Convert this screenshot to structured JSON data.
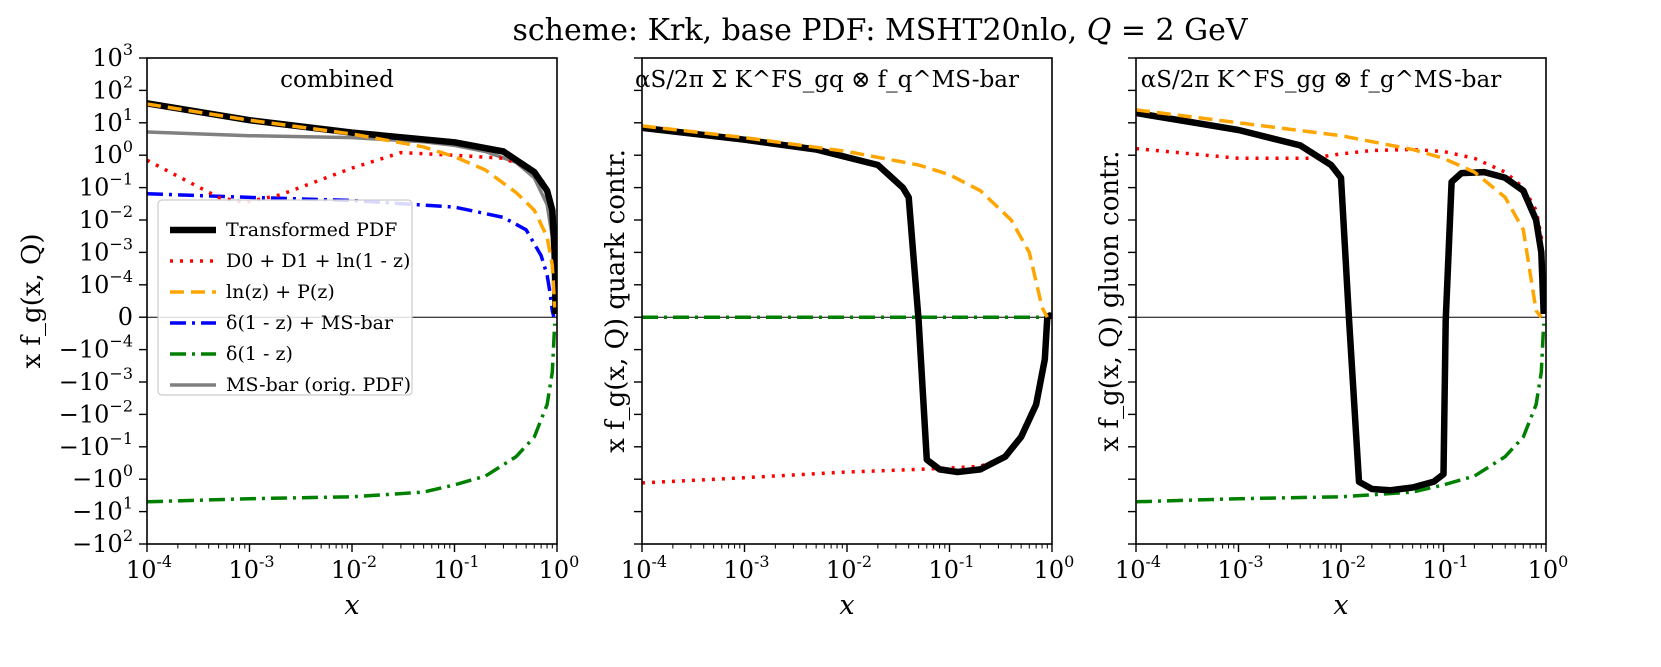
{
  "chart_data": {
    "type": "line",
    "title": "scheme: Krk, base PDF: MSHT20nlo, Q = 2 GeV",
    "xlabel": "x",
    "xscale": "log",
    "xlim": [
      0.0001,
      1
    ],
    "yscale": "symlog",
    "ylim": [
      -100,
      1000
    ],
    "xtick_labels": [
      "10^-4",
      "10^-3",
      "10^-2",
      "10^-1",
      "10^0"
    ],
    "ytick_labels": [
      "10^3",
      "10^2",
      "10^1",
      "10^0",
      "10^-1",
      "10^-2",
      "10^-3",
      "10^-4",
      "0",
      "-10^-4",
      "-10^-3",
      "-10^-2",
      "-10^-1",
      "-10^0",
      "-10^1",
      "-10^2"
    ],
    "legend_position": "center-left (first panel)",
    "colors": {
      "transformed": "#000000",
      "distributions": "#ff0000",
      "log_p": "#ffa500",
      "delta_msbar": "#0000ff",
      "delta": "#008000",
      "msbar": "#808080"
    },
    "panels": [
      {
        "title": "combined",
        "ylabel": "x f_g(x, Q)",
        "show_ytick_labels": true,
        "show_legend": true,
        "series": [
          {
            "key": "transformed",
            "name": "Transformed PDF",
            "x": [
              0.0001,
              0.001,
              0.01,
              0.1,
              0.3,
              0.6,
              0.8,
              0.9,
              0.95,
              0.97
            ],
            "y": [
              40,
              12,
              5,
              2.5,
              1.3,
              0.3,
              0.08,
              0.02,
              0.001,
              1e-05
            ]
          },
          {
            "key": "distributions",
            "name": "D0 + D1 + ln(1 - z)",
            "x": [
              0.0001,
              0.0005,
              0.0009,
              0.002,
              0.01,
              0.03,
              0.1,
              0.3,
              0.6,
              0.8,
              0.9,
              0.95,
              0.98
            ],
            "y": [
              0.7,
              0.05,
              0.035,
              0.06,
              0.4,
              1.2,
              1.0,
              0.8,
              0.35,
              0.1,
              0.03,
              0.003,
              0.0001
            ]
          },
          {
            "key": "log_p",
            "name": "ln(z) + P(z)",
            "x": [
              0.0001,
              0.001,
              0.01,
              0.05,
              0.1,
              0.2,
              0.4,
              0.6,
              0.8,
              0.9,
              0.95
            ],
            "y": [
              38,
              12,
              4.5,
              1.8,
              0.9,
              0.35,
              0.07,
              0.02,
              0.003,
              0.0004,
              3e-05
            ]
          },
          {
            "key": "delta_msbar",
            "name": "δ(1 - z) + MS-bar",
            "x": [
              0.0001,
              0.001,
              0.01,
              0.1,
              0.3,
              0.5,
              0.7,
              0.8,
              0.85,
              0.9,
              0.93
            ],
            "y": [
              0.065,
              0.05,
              0.04,
              0.025,
              0.012,
              0.005,
              0.0008,
              0.0002,
              8e-05,
              2e-05,
              1e-06
            ]
          },
          {
            "key": "delta",
            "name": "δ(1 - z)",
            "x": [
              0.0001,
              0.001,
              0.01,
              0.05,
              0.1,
              0.2,
              0.4,
              0.6,
              0.8,
              0.9,
              0.95
            ],
            "y": [
              -5,
              -4,
              -3.5,
              -2.5,
              -1.5,
              -0.8,
              -0.2,
              -0.05,
              -0.005,
              -0.0005,
              -2e-05
            ]
          },
          {
            "key": "msbar",
            "name": "MS-bar (orig. PDF)",
            "x": [
              0.0001,
              0.001,
              0.01,
              0.05,
              0.1,
              0.2,
              0.4,
              0.6,
              0.8,
              0.9,
              0.93
            ],
            "y": [
              5.2,
              4,
              3.5,
              2.6,
              2.0,
              1.3,
              0.6,
              0.2,
              0.03,
              0.003,
              0.0002
            ]
          }
        ]
      },
      {
        "title": "αS/2π Σ K^FS_gq ⊗ f_q^MS-bar",
        "ylabel": "x f_g(x, Q) quark contr.",
        "show_ytick_labels": false,
        "show_legend": false,
        "series": [
          {
            "key": "transformed",
            "x": [
              0.0001,
              0.001,
              0.005,
              0.02,
              0.035,
              0.04,
              0.05,
              0.06,
              0.08,
              0.12,
              0.2,
              0.35,
              0.5,
              0.7,
              0.85,
              0.9,
              0.95,
              1.0
            ],
            "y": [
              7,
              3,
              1.5,
              0.5,
              0.1,
              0.05,
              -1e-05,
              -0.25,
              -0.5,
              -0.6,
              -0.5,
              -0.2,
              -0.05,
              -0.005,
              -0.0002,
              0,
              5e-06,
              0
            ]
          },
          {
            "key": "distributions",
            "x": [
              0.0001,
              0.001,
              0.01,
              0.05,
              0.1,
              0.2,
              0.35,
              0.5,
              0.7,
              0.85,
              0.9
            ],
            "y": [
              -1.3,
              -0.9,
              -0.6,
              -0.5,
              -0.45,
              -0.4,
              -0.2,
              -0.05,
              -0.005,
              -0.0002,
              0
            ]
          },
          {
            "key": "log_p",
            "x": [
              0.0001,
              0.001,
              0.01,
              0.05,
              0.1,
              0.2,
              0.4,
              0.6,
              0.8,
              0.9
            ],
            "y": [
              8,
              3.5,
              1.3,
              0.5,
              0.25,
              0.08,
              0.01,
              0.001,
              3e-05,
              0
            ]
          },
          {
            "key": "delta",
            "x": [
              0.0001,
              1.0
            ],
            "y": [
              0,
              0
            ]
          }
        ]
      },
      {
        "title": "αS/2π K^FS_gg ⊗ f_g^MS-bar",
        "ylabel": "x f_g(x, Q) gluon contr.",
        "show_ytick_labels": false,
        "show_legend": false,
        "series": [
          {
            "key": "transformed",
            "x": [
              0.0001,
              0.001,
              0.004,
              0.008,
              0.01,
              0.012,
              0.015,
              0.02,
              0.03,
              0.05,
              0.08,
              0.1,
              0.105,
              0.12,
              0.15,
              0.25,
              0.4,
              0.6,
              0.8,
              0.9,
              0.95
            ],
            "y": [
              20,
              6,
              2,
              0.5,
              0.2,
              -1e-05,
              -1.2,
              -2.0,
              -2.2,
              -1.8,
              -1.2,
              -0.7,
              -1e-05,
              0.15,
              0.28,
              0.3,
              0.2,
              0.08,
              0.01,
              0.001,
              1e-05
            ]
          },
          {
            "key": "distributions",
            "x": [
              0.0001,
              0.001,
              0.005,
              0.01,
              0.02,
              0.05,
              0.1,
              0.2,
              0.4,
              0.6,
              0.8,
              0.9,
              0.95
            ],
            "y": [
              1.6,
              0.8,
              0.8,
              1.1,
              1.4,
              1.5,
              1.3,
              0.8,
              0.3,
              0.1,
              0.02,
              0.003,
              0.0001
            ]
          },
          {
            "key": "log_p",
            "x": [
              0.0001,
              0.001,
              0.01,
              0.05,
              0.1,
              0.2,
              0.4,
              0.6,
              0.8,
              0.9
            ],
            "y": [
              25,
              10,
              4,
              1.5,
              0.8,
              0.3,
              0.05,
              0.005,
              2e-05,
              0
            ]
          },
          {
            "key": "delta",
            "x": [
              0.0001,
              0.001,
              0.01,
              0.05,
              0.1,
              0.2,
              0.4,
              0.6,
              0.8,
              0.9,
              0.95
            ],
            "y": [
              -5,
              -4,
              -3.5,
              -2.5,
              -1.5,
              -0.8,
              -0.2,
              -0.05,
              -0.005,
              -0.0005,
              -2e-05
            ]
          }
        ]
      }
    ]
  }
}
